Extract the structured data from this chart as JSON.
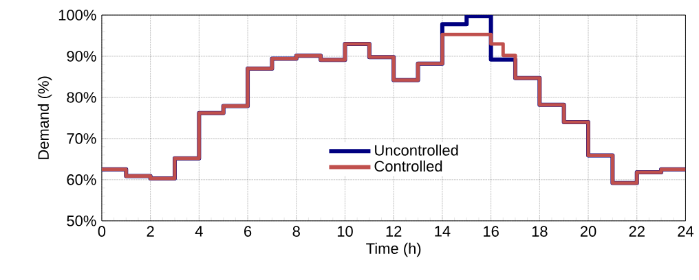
{
  "chart_data": {
    "type": "step",
    "xlabel": "Time (h)",
    "ylabel": "Demand (%)",
    "xlim": [
      0,
      24
    ],
    "xticks": [
      0,
      2,
      4,
      6,
      8,
      10,
      12,
      14,
      16,
      18,
      20,
      22,
      24
    ],
    "ylim": [
      50,
      100
    ],
    "yticks": [
      {
        "value": 50,
        "label": "50%"
      },
      {
        "value": 60,
        "label": "60%"
      },
      {
        "value": 70,
        "label": "70%"
      },
      {
        "value": 80,
        "label": "80%"
      },
      {
        "value": 90,
        "label": "90%"
      },
      {
        "value": 100,
        "label": "100%"
      }
    ],
    "grid": true,
    "legend": "center",
    "marker": "none",
    "line_style": "solid",
    "series": [
      {
        "name": "Uncontrolled",
        "color": "#000080",
        "x": [
          0,
          1,
          2,
          3,
          4,
          5,
          6,
          7,
          8,
          9,
          10,
          11,
          12,
          13,
          14,
          15,
          16,
          17,
          18,
          19,
          20,
          21,
          22,
          23,
          24
        ],
        "values": [
          62.5,
          60.9,
          60.3,
          65.2,
          76.2,
          77.9,
          87.0,
          89.4,
          90.1,
          89.1,
          93.0,
          89.8,
          84.2,
          88.2,
          97.8,
          99.8,
          89.2,
          84.7,
          78.2,
          74.0,
          65.9,
          59.2,
          61.8,
          62.5,
          62.5
        ]
      },
      {
        "name": "Controlled",
        "color": "#c0504d",
        "x": [
          0,
          1,
          2,
          3,
          4,
          5,
          6,
          7,
          8,
          9,
          10,
          11,
          12,
          13,
          14,
          15,
          16,
          16.5,
          17,
          18,
          19,
          20,
          21,
          22,
          23,
          24
        ],
        "values": [
          62.5,
          60.9,
          60.3,
          65.2,
          76.2,
          77.9,
          87.0,
          89.4,
          90.1,
          89.1,
          93.0,
          89.8,
          84.2,
          88.2,
          95.3,
          95.3,
          93.0,
          90.2,
          84.7,
          78.2,
          74.0,
          65.9,
          59.2,
          61.8,
          62.5,
          62.5
        ]
      }
    ]
  }
}
